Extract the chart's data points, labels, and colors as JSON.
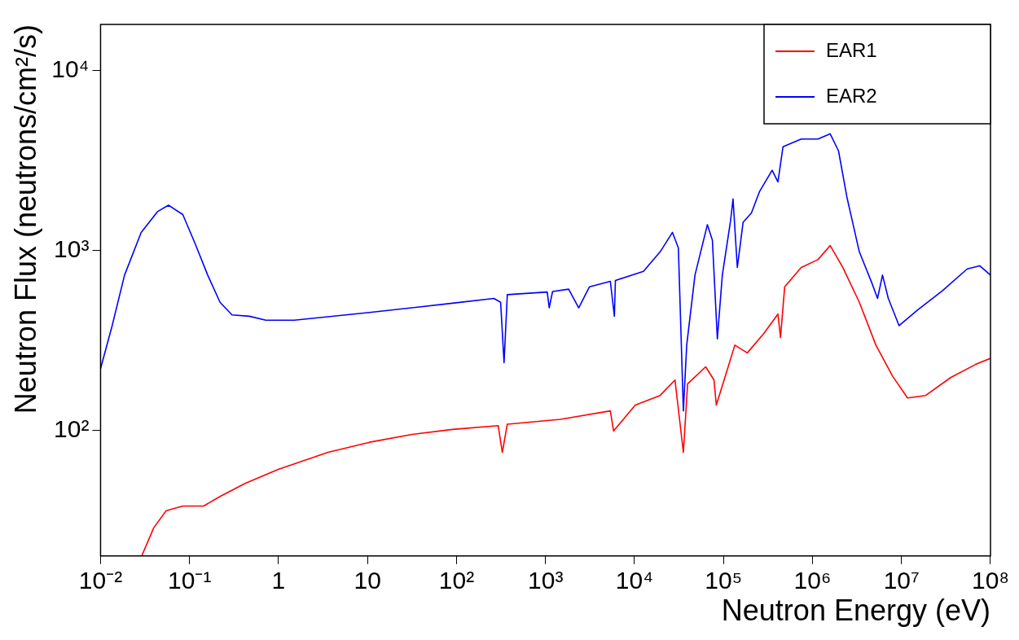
{
  "chart_data": {
    "type": "line",
    "xlabel": "Neutron Energy (eV)",
    "ylabel": "Neutron Flux (neutrons/cm²/s)",
    "log": "xy",
    "xlim": [
      0.01,
      100000000
    ],
    "ylim": [
      20,
      18000
    ],
    "xticks": [
      {
        "value": 0.01,
        "label": "10⁻²"
      },
      {
        "value": 0.1,
        "label": "10⁻¹"
      },
      1,
      10,
      {
        "value": 100,
        "label": "10²"
      },
      {
        "value": 1000,
        "label": "10³"
      },
      {
        "value": 10000,
        "label": "10⁴"
      },
      {
        "value": 100000,
        "label": "10⁵"
      },
      {
        "value": 1000000,
        "label": "10⁶"
      },
      {
        "value": 10000000,
        "label": "10⁷"
      },
      {
        "value": 100000000,
        "label": "10⁸"
      }
    ],
    "yticks": [
      {
        "value": 100,
        "label": "10²"
      },
      {
        "value": 1000,
        "label": "10³"
      },
      {
        "value": 10000,
        "label": "10⁴"
      }
    ],
    "grid": false,
    "legend": "top right",
    "marker": "none",
    "line_style": "solid",
    "series": [
      {
        "name": "EAR1",
        "color": "#ff0000",
        "x": [
          0.029,
          0.0396,
          0.0546,
          0.084,
          0.144,
          0.22,
          0.42,
          0.99,
          3.6,
          10.5,
          30.8,
          90,
          294,
          327,
          372,
          1470,
          5350,
          5820,
          10200,
          19400,
          28500,
          35400,
          39500,
          63100,
          78200,
          83000,
          108000,
          134000,
          185000,
          284000,
          409000,
          437000,
          487000,
          747000,
          1150000,
          1580000,
          2190000,
          3360000,
          5160000,
          7930000,
          11700000,
          18700000,
          35600000,
          67900000,
          100000000
        ],
        "values": [
          20,
          28.7,
          35.7,
          37.9,
          37.9,
          42.8,
          50.6,
          60.5,
          75.3,
          85.7,
          94.6,
          101,
          106,
          75.3,
          108,
          115,
          128,
          99,
          138,
          156,
          190,
          75.3,
          181,
          225,
          190,
          138,
          210,
          297,
          269,
          345,
          442,
          328,
          627,
          803,
          887,
          1062,
          803,
          514,
          297,
          200,
          151,
          156,
          196,
          232,
          251
        ]
      },
      {
        "name": "EAR2",
        "color": "#0000ff",
        "x": [
          0.01,
          0.0135,
          0.0186,
          0.0286,
          0.044,
          0.058,
          0.084,
          0.116,
          0.16,
          0.22,
          0.3,
          0.47,
          0.72,
          1.5,
          10.5,
          90,
          263,
          313,
          342,
          372,
          1045,
          1100,
          1200,
          1820,
          2360,
          3120,
          5350,
          5940,
          6100,
          12600,
          19400,
          26700,
          31100,
          35400,
          38600,
          47800,
          65900,
          75000,
          85300,
          97000,
          120000,
          128000,
          143000,
          166000,
          206000,
          255000,
          352000,
          409000,
          466000,
          747000,
          1150000,
          1580000,
          1960000,
          2440000,
          3360000,
          4640000,
          5380000,
          6120000,
          7110000,
          9400000,
          15100000,
          28800000,
          54800000,
          75700000,
          100000000
        ],
        "values": [
          220,
          381,
          728,
          1257,
          1645,
          1780,
          1580,
          1083,
          728,
          514,
          437,
          430,
          409,
          409,
          451,
          508,
          540,
          514,
          237,
          567,
          586,
          479,
          590,
          608,
          479,
          627,
          672,
          430,
          680,
          764,
          980,
          1257,
          1030,
          128,
          297,
          728,
          1388,
          1138,
          322,
          728,
          1459,
          1928,
          803,
          1430,
          1612,
          2130,
          2785,
          2400,
          3760,
          4150,
          4150,
          4440,
          3570,
          1967,
          980,
          659,
          540,
          728,
          540,
          381,
          465,
          596,
          788,
          820,
          728
        ]
      }
    ]
  }
}
